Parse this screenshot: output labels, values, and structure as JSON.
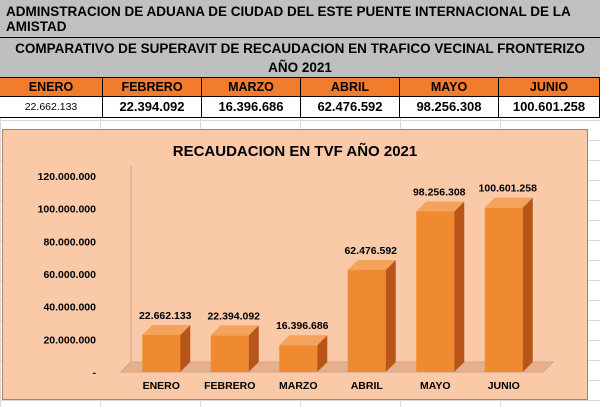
{
  "header": {
    "title": "ADMINSTRACION DE ADUANA DE CIUDAD DEL ESTE PUENTE INTERNACIONAL DE LA AMISTAD",
    "subtitle": "COMPARATIVO DE SUPERAVIT DE RECAUDACION EN TRAFICO VECINAL FRONTERIZO AÑO 2021"
  },
  "table": {
    "months": [
      "ENERO",
      "FEBRERO",
      "MARZO",
      "ABRIL",
      "MAYO",
      "JUNIO"
    ],
    "values": [
      "22.662.133",
      "22.394.092",
      "16.396.686",
      "62.476.592",
      "98.256.308",
      "100.601.258"
    ]
  },
  "colors": {
    "bar": "#f08a30",
    "bar_side": "#b8561a",
    "header_orange": "#f07c2c",
    "chart_bg": "#f9c9a8"
  },
  "chart_data": {
    "type": "bar",
    "title": "RECAUDACION EN TVF AÑO 2021",
    "categories": [
      "ENERO",
      "FEBRERO",
      "MARZO",
      "ABRIL",
      "MAYO",
      "JUNIO"
    ],
    "values": [
      22662133,
      22394092,
      16396686,
      62476592,
      98256308,
      100601258
    ],
    "value_labels": [
      "22.662.133",
      "22.394.092",
      "16.396.686",
      "62.476.592",
      "98.256.308",
      "100.601.258"
    ],
    "yticks": [
      0,
      20000000,
      40000000,
      60000000,
      80000000,
      100000000,
      120000000
    ],
    "ytick_labels": [
      "-",
      "20.000.000",
      "40.000.000",
      "60.000.000",
      "80.000.000",
      "100.000.000",
      "120.000.000"
    ],
    "ylim": [
      0,
      120000000
    ],
    "grid": false,
    "legend": "none",
    "style": "3d"
  }
}
